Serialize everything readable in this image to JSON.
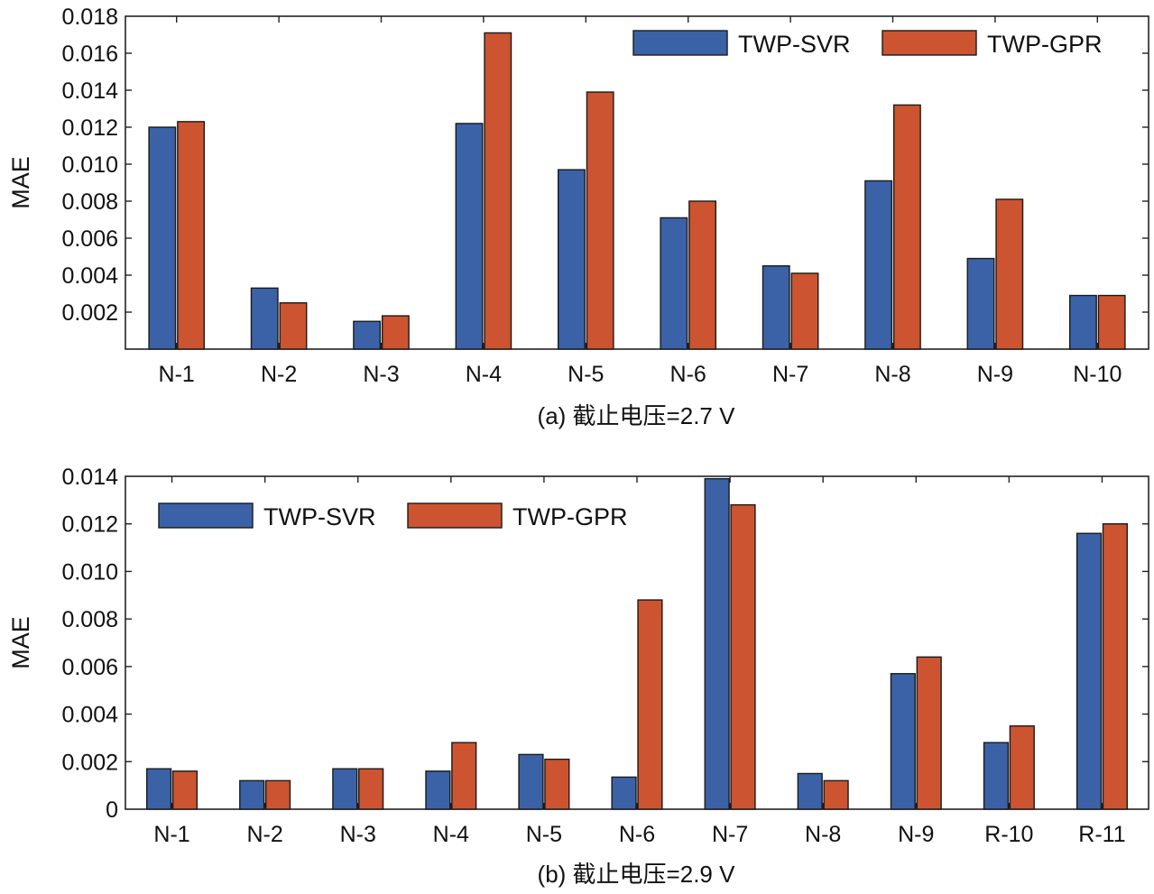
{
  "chart_data": [
    {
      "type": "bar",
      "caption": "(a) 截止电压=2.7 V",
      "xlabel": "",
      "ylabel": "MAE",
      "ylim": [
        0,
        0.018
      ],
      "yticks": [
        "",
        "0.002",
        "0.004",
        "0.006",
        "0.008",
        "0.010",
        "0.012",
        "0.014",
        "0.016",
        "0.018"
      ],
      "legend_position": "top-right",
      "categories": [
        "N-1",
        "N-2",
        "N-3",
        "N-4",
        "N-5",
        "N-6",
        "N-7",
        "N-8",
        "N-9",
        "N-10"
      ],
      "series": [
        {
          "name": "TWP-SVR",
          "color": "#3b62a6",
          "values": [
            0.012,
            0.0033,
            0.0015,
            0.0122,
            0.0097,
            0.0071,
            0.0045,
            0.0091,
            0.0049,
            0.0029
          ]
        },
        {
          "name": "TWP-GPR",
          "color": "#cc5430",
          "values": [
            0.0123,
            0.0025,
            0.0018,
            0.0171,
            0.0139,
            0.008,
            0.0041,
            0.0132,
            0.0081,
            0.0029
          ]
        }
      ]
    },
    {
      "type": "bar",
      "caption": "(b) 截止电压=2.9 V",
      "xlabel": "",
      "ylabel": "MAE",
      "ylim": [
        0,
        0.014
      ],
      "yticks": [
        "0",
        "0.002",
        "0.004",
        "0.006",
        "0.008",
        "0.010",
        "0.012",
        "0.014"
      ],
      "legend_position": "top-left",
      "categories": [
        "N-1",
        "N-2",
        "N-3",
        "N-4",
        "N-5",
        "N-6",
        "N-7",
        "N-8",
        "N-9",
        "R-10",
        "R-11"
      ],
      "series": [
        {
          "name": "TWP-SVR",
          "color": "#3b62a6",
          "values": [
            0.0017,
            0.0012,
            0.0017,
            0.0016,
            0.0023,
            0.00135,
            0.0139,
            0.0015,
            0.0057,
            0.0028,
            0.0116
          ]
        },
        {
          "name": "TWP-GPR",
          "color": "#cc5430",
          "values": [
            0.0016,
            0.0012,
            0.0017,
            0.0028,
            0.0021,
            0.0088,
            0.0128,
            0.0012,
            0.0064,
            0.0035,
            0.012
          ]
        }
      ]
    }
  ]
}
